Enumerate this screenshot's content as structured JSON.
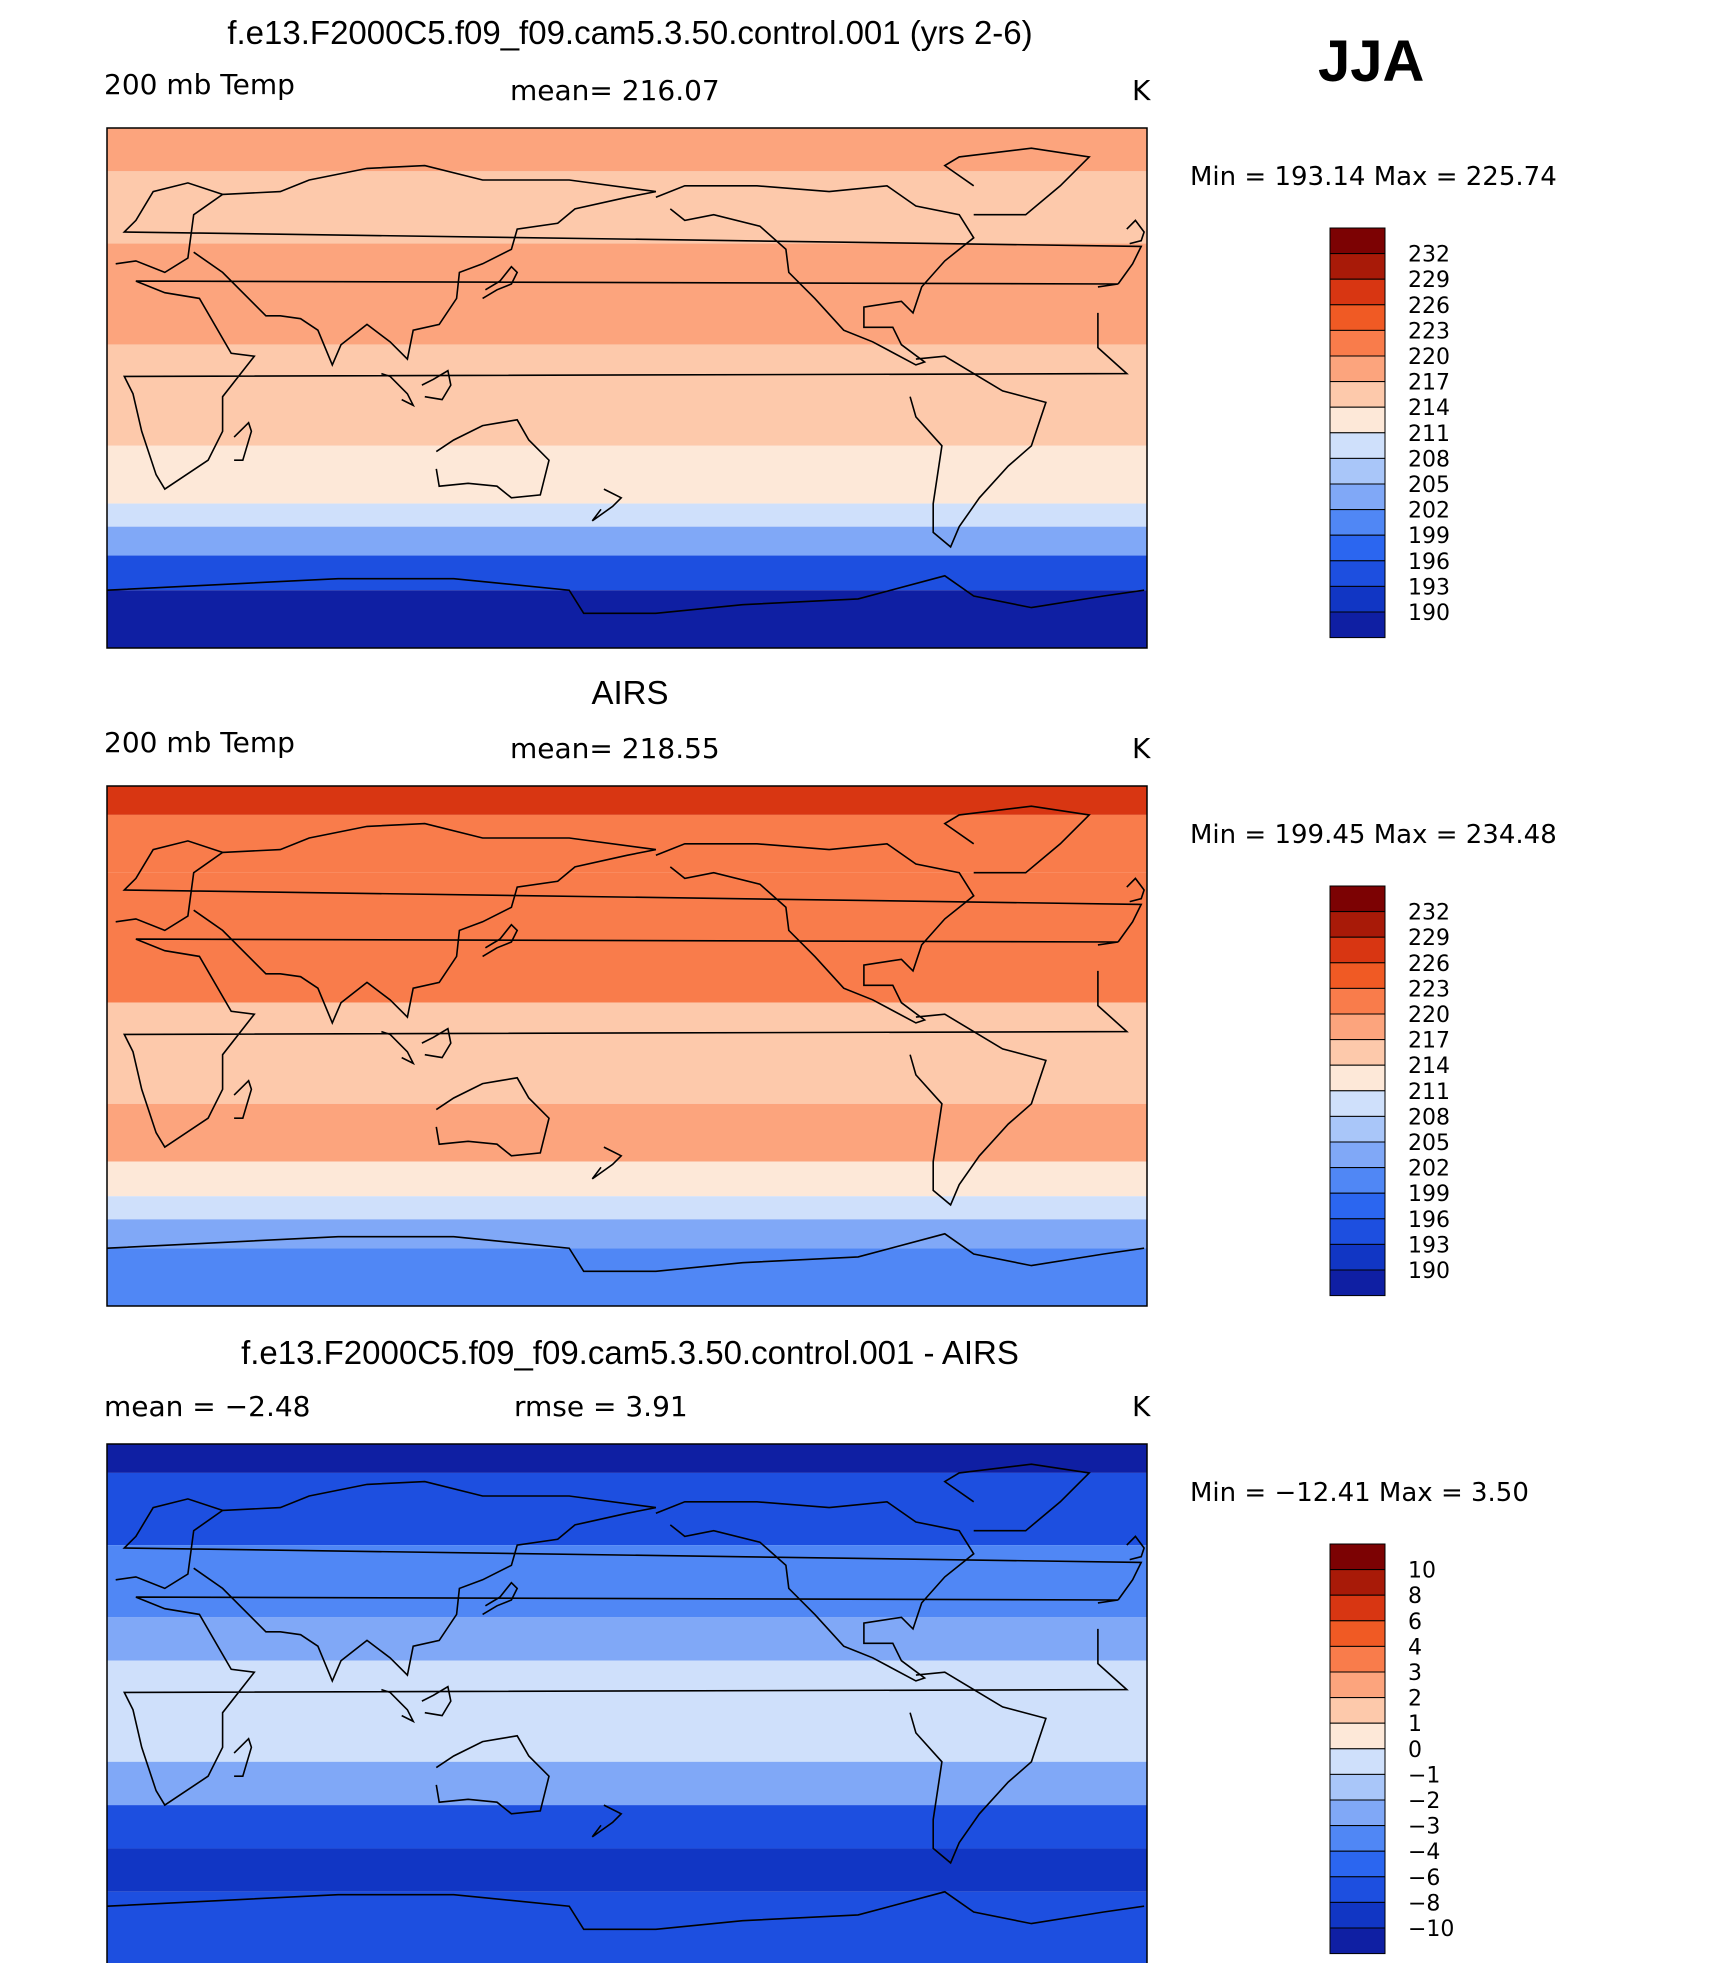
{
  "season": "JJA",
  "colors": {
    "temp_scale": [
      "#08057a",
      "#0f1fa3",
      "#1136c4",
      "#1d4fe0",
      "#2b66f0",
      "#5087f5",
      "#80a8f7",
      "#a9c6f9",
      "#cfe0fb",
      "#fde8d8",
      "#fdc9ab",
      "#fca47d",
      "#f97c4b",
      "#f05a24",
      "#d83612",
      "#a81a08",
      "#7c0203"
    ],
    "diff_scale": [
      "#08057a",
      "#0f1fa3",
      "#1136c4",
      "#1d4fe0",
      "#2b66f0",
      "#5087f5",
      "#80a8f7",
      "#a9c6f9",
      "#cfe0fb",
      "#fde8d8",
      "#fdc9ab",
      "#fca47d",
      "#f97c4b",
      "#f05a24",
      "#d83612",
      "#a81a08",
      "#7c0203"
    ]
  },
  "panels": [
    {
      "id": "model",
      "title": "f.e13.F2000C5.f09_f09.cam5.3.50.control.001 (yrs 2-6)",
      "left_label": "200 mb Temp",
      "center_label": "mean=  216.07",
      "units": "K",
      "minmax": "Min  =  193.14  Max  =  225.74",
      "colorbar_labels": [
        "232",
        "229",
        "226",
        "223",
        "220",
        "217",
        "214",
        "211",
        "208",
        "205",
        "202",
        "199",
        "196",
        "193",
        "190"
      ]
    },
    {
      "id": "obs",
      "title": "AIRS",
      "left_label": "200 mb Temp",
      "center_label": "mean=  218.55",
      "units": "K",
      "minmax": "Min  =  199.45  Max  =  234.48",
      "colorbar_labels": [
        "232",
        "229",
        "226",
        "223",
        "220",
        "217",
        "214",
        "211",
        "208",
        "205",
        "202",
        "199",
        "196",
        "193",
        "190"
      ]
    },
    {
      "id": "diff",
      "title": "f.e13.F2000C5.f09_f09.cam5.3.50.control.001 - AIRS",
      "left_label": "mean  =    −2.48",
      "center_label": "rmse  =     3.91",
      "units": "K",
      "minmax": "Min  =  −12.41  Max  =      3.50",
      "colorbar_labels": [
        "10",
        "8",
        "6",
        "4",
        "3",
        "2",
        "1",
        "0",
        "−1",
        "−2",
        "−3",
        "−4",
        "−6",
        "−8",
        "−10"
      ]
    }
  ],
  "chart_data": [
    {
      "type": "heatmap",
      "title": "f.e13.F2000C5.f09_f09.cam5.3.50.control.001 (yrs 2-6)",
      "variable": "200 mb Temp",
      "units": "K",
      "mean": 216.07,
      "min": 193.14,
      "max": 225.74,
      "contour_levels": [
        190,
        193,
        196,
        199,
        202,
        205,
        208,
        211,
        214,
        217,
        220,
        223,
        226,
        229,
        232
      ],
      "zonal_bands": [
        {
          "lat_min": 75,
          "lat_max": 90,
          "value": 222
        },
        {
          "lat_min": 50,
          "lat_max": 75,
          "value": 219
        },
        {
          "lat_min": 15,
          "lat_max": 50,
          "value": 221
        },
        {
          "lat_min": -20,
          "lat_max": 15,
          "value": 218
        },
        {
          "lat_min": -40,
          "lat_max": -20,
          "value": 216
        },
        {
          "lat_min": -48,
          "lat_max": -40,
          "value": 212
        },
        {
          "lat_min": -58,
          "lat_max": -48,
          "value": 206
        },
        {
          "lat_min": -70,
          "lat_max": -58,
          "value": 198
        },
        {
          "lat_min": -90,
          "lat_max": -70,
          "value": 192
        }
      ]
    },
    {
      "type": "heatmap",
      "title": "AIRS",
      "variable": "200 mb Temp",
      "units": "K",
      "mean": 218.55,
      "min": 199.45,
      "max": 234.48,
      "contour_levels": [
        190,
        193,
        196,
        199,
        202,
        205,
        208,
        211,
        214,
        217,
        220,
        223,
        226,
        229,
        232
      ],
      "zonal_bands": [
        {
          "lat_min": 80,
          "lat_max": 90,
          "value": 231
        },
        {
          "lat_min": 60,
          "lat_max": 80,
          "value": 225
        },
        {
          "lat_min": 15,
          "lat_max": 60,
          "value": 223
        },
        {
          "lat_min": -20,
          "lat_max": 15,
          "value": 219
        },
        {
          "lat_min": -40,
          "lat_max": -20,
          "value": 221
        },
        {
          "lat_min": -52,
          "lat_max": -40,
          "value": 216
        },
        {
          "lat_min": -60,
          "lat_max": -52,
          "value": 212
        },
        {
          "lat_min": -70,
          "lat_max": -60,
          "value": 207
        },
        {
          "lat_min": -90,
          "lat_max": -70,
          "value": 203
        }
      ]
    },
    {
      "type": "heatmap",
      "title": "f.e13.F2000C5.f09_f09.cam5.3.50.control.001 - AIRS",
      "units": "K",
      "mean": -2.48,
      "rmse": 3.91,
      "min": -12.41,
      "max": 3.5,
      "contour_levels": [
        -10,
        -8,
        -6,
        -4,
        -3,
        -2,
        -1,
        0,
        1,
        2,
        3,
        4,
        6,
        8,
        10
      ],
      "zonal_bands": [
        {
          "lat_min": 80,
          "lat_max": 90,
          "value": -9
        },
        {
          "lat_min": 55,
          "lat_max": 80,
          "value": -5
        },
        {
          "lat_min": 30,
          "lat_max": 55,
          "value": -2.5
        },
        {
          "lat_min": 15,
          "lat_max": 30,
          "value": -1.5
        },
        {
          "lat_min": -20,
          "lat_max": 15,
          "value": 0.5
        },
        {
          "lat_min": -35,
          "lat_max": -20,
          "value": -1.5
        },
        {
          "lat_min": -50,
          "lat_max": -35,
          "value": -5
        },
        {
          "lat_min": -65,
          "lat_max": -50,
          "value": -7
        },
        {
          "lat_min": -90,
          "lat_max": -65,
          "value": -5
        }
      ]
    }
  ]
}
